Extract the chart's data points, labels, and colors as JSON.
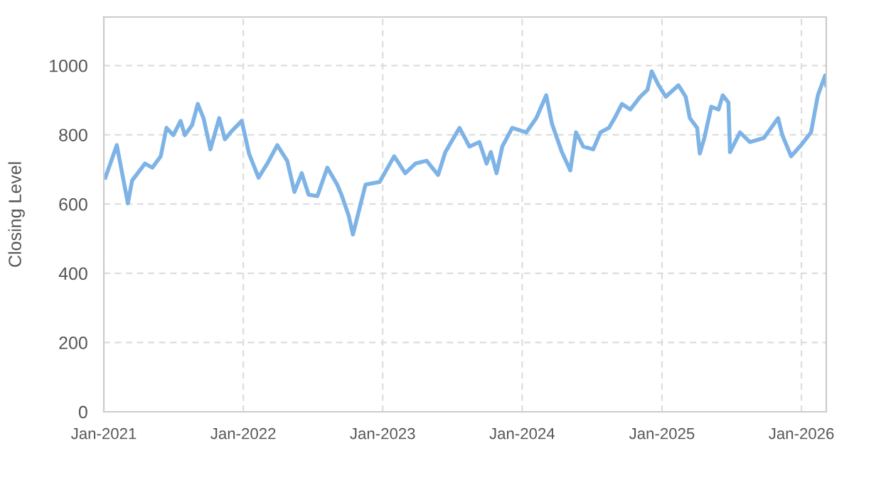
{
  "chart_data": {
    "type": "line",
    "ylabel": "Closing Level",
    "xlim": [
      "2021-01-01",
      "2026-03-07"
    ],
    "xticks": [
      {
        "value": "2021-01-01",
        "label": "Jan-2021"
      },
      {
        "value": "2022-01-01",
        "label": "Jan-2022"
      },
      {
        "value": "2023-01-01",
        "label": "Jan-2023"
      },
      {
        "value": "2024-01-01",
        "label": "Jan-2024"
      },
      {
        "value": "2025-01-01",
        "label": "Jan-2025"
      },
      {
        "value": "2026-01-01",
        "label": "Jan-2026"
      }
    ],
    "ylim": [
      0,
      1140
    ],
    "yticks": [
      0,
      200,
      400,
      600,
      800,
      1000
    ],
    "grid": true,
    "marker": "none",
    "line_style": "solid",
    "series": [
      {
        "color": "#7eb3e6",
        "x": [
          "2021-01-05",
          "2021-02-04",
          "2021-03-05",
          "2021-03-16",
          "2021-04-19",
          "2021-05-08",
          "2021-05-30",
          "2021-06-14",
          "2021-07-02",
          "2021-07-21",
          "2021-08-01",
          "2021-08-20",
          "2021-09-04",
          "2021-09-19",
          "2021-10-07",
          "2021-10-30",
          "2021-11-14",
          "2021-12-02",
          "2021-12-28",
          "2022-01-16",
          "2022-02-10",
          "2022-03-05",
          "2022-03-31",
          "2022-04-26",
          "2022-05-15",
          "2022-06-03",
          "2022-06-21",
          "2022-07-14",
          "2022-08-09",
          "2022-09-04",
          "2022-09-15",
          "2022-10-04",
          "2022-10-15",
          "2022-11-17",
          "2022-12-24",
          "2023-01-31",
          "2023-03-01",
          "2023-03-28",
          "2023-04-26",
          "2023-05-26",
          "2023-06-14",
          "2023-07-21",
          "2023-08-16",
          "2023-09-11",
          "2023-09-30",
          "2023-10-11",
          "2023-10-26",
          "2023-11-10",
          "2023-12-06",
          "2024-01-12",
          "2024-02-07",
          "2024-03-04",
          "2024-03-19",
          "2024-04-14",
          "2024-05-06",
          "2024-05-21",
          "2024-06-09",
          "2024-07-05",
          "2024-07-24",
          "2024-08-15",
          "2024-08-30",
          "2024-09-18",
          "2024-10-10",
          "2024-11-05",
          "2024-11-24",
          "2024-12-05",
          "2024-12-23",
          "2025-01-11",
          "2025-02-13",
          "2025-03-04",
          "2025-03-15",
          "2025-04-03",
          "2025-04-10",
          "2025-04-22",
          "2025-05-10",
          "2025-05-29",
          "2025-06-09",
          "2025-06-24",
          "2025-06-28",
          "2025-07-24",
          "2025-08-19",
          "2025-09-25",
          "2025-11-01",
          "2025-11-12",
          "2025-12-05",
          "2025-12-31",
          "2026-01-26",
          "2026-02-13",
          "2026-03-04",
          "2026-03-07"
        ],
        "values": [
          676,
          770,
          602,
          668,
          717,
          705,
          738,
          820,
          799,
          840,
          799,
          828,
          889,
          848,
          758,
          848,
          787,
          811,
          840,
          746,
          676,
          717,
          770,
          725,
          635,
          689,
          627,
          623,
          705,
          656,
          627,
          566,
          512,
          656,
          664,
          738,
          689,
          717,
          725,
          684,
          750,
          820,
          766,
          779,
          717,
          750,
          689,
          766,
          820,
          807,
          848,
          914,
          832,
          750,
          697,
          807,
          766,
          758,
          807,
          820,
          848,
          889,
          873,
          910,
          930,
          983,
          943,
          910,
          943,
          910,
          848,
          820,
          746,
          791,
          881,
          873,
          914,
          893,
          750,
          807,
          779,
          791,
          848,
          799,
          738,
          770,
          807,
          914,
          971,
          943
        ]
      }
    ]
  }
}
